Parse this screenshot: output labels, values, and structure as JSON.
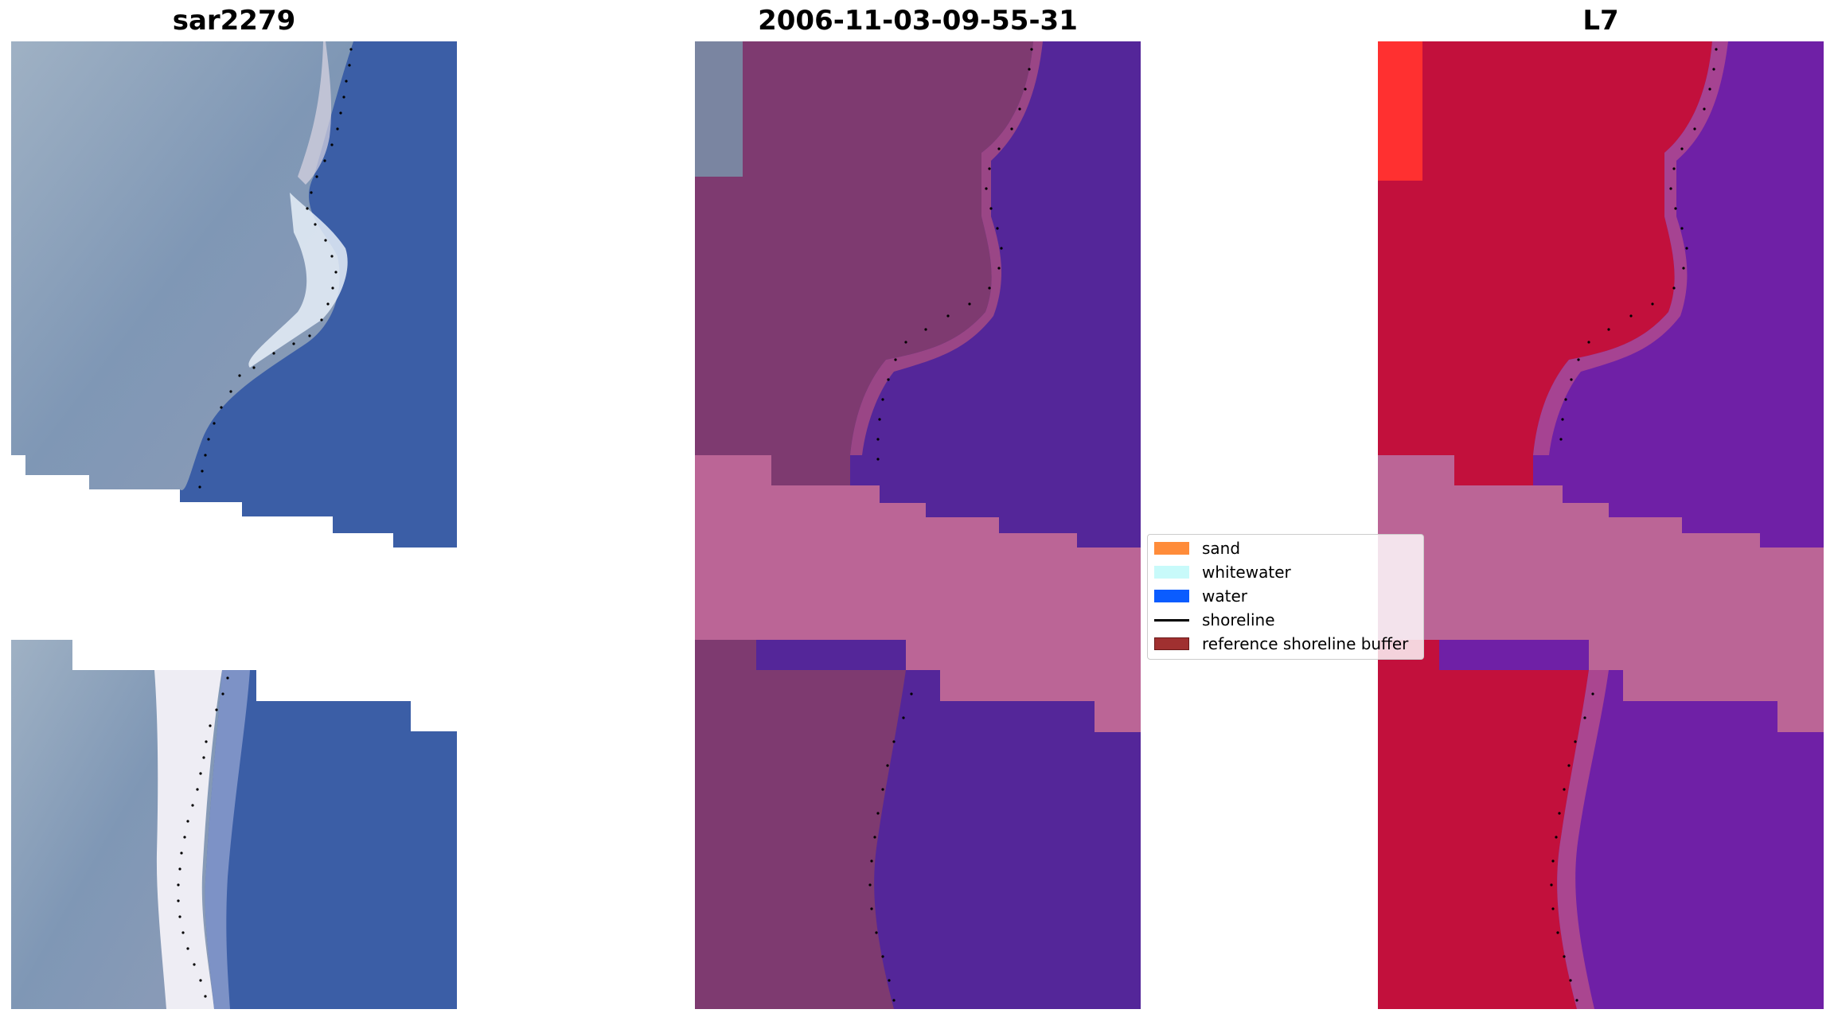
{
  "panels": [
    {
      "title": "sar2279"
    },
    {
      "title": "2006-11-03-09-55-31"
    },
    {
      "title": "L7"
    }
  ],
  "legend": {
    "items": [
      {
        "label": "sand",
        "color": "#ff8c3a",
        "kind": "patch"
      },
      {
        "label": "whitewater",
        "color": "#c8fafa",
        "kind": "patch"
      },
      {
        "label": "water",
        "color": "#0a5cff",
        "kind": "patch"
      },
      {
        "label": "shoreline",
        "color": "#000000",
        "kind": "line"
      },
      {
        "label": "reference shoreline buffer",
        "color": "#a03030",
        "kind": "patch"
      }
    ]
  },
  "colors": {
    "rgb_land": "#8aa0b8",
    "rgb_water": "#3a5fa4",
    "rgb_sand": "#dcdcec",
    "class_land": "#7e3a70",
    "class_water": "#542699",
    "buffer": "#bb6596",
    "ndwi_land": "#c2103c",
    "ndwi_water": "#6f20a6",
    "shoreline_dots": "#000000"
  }
}
